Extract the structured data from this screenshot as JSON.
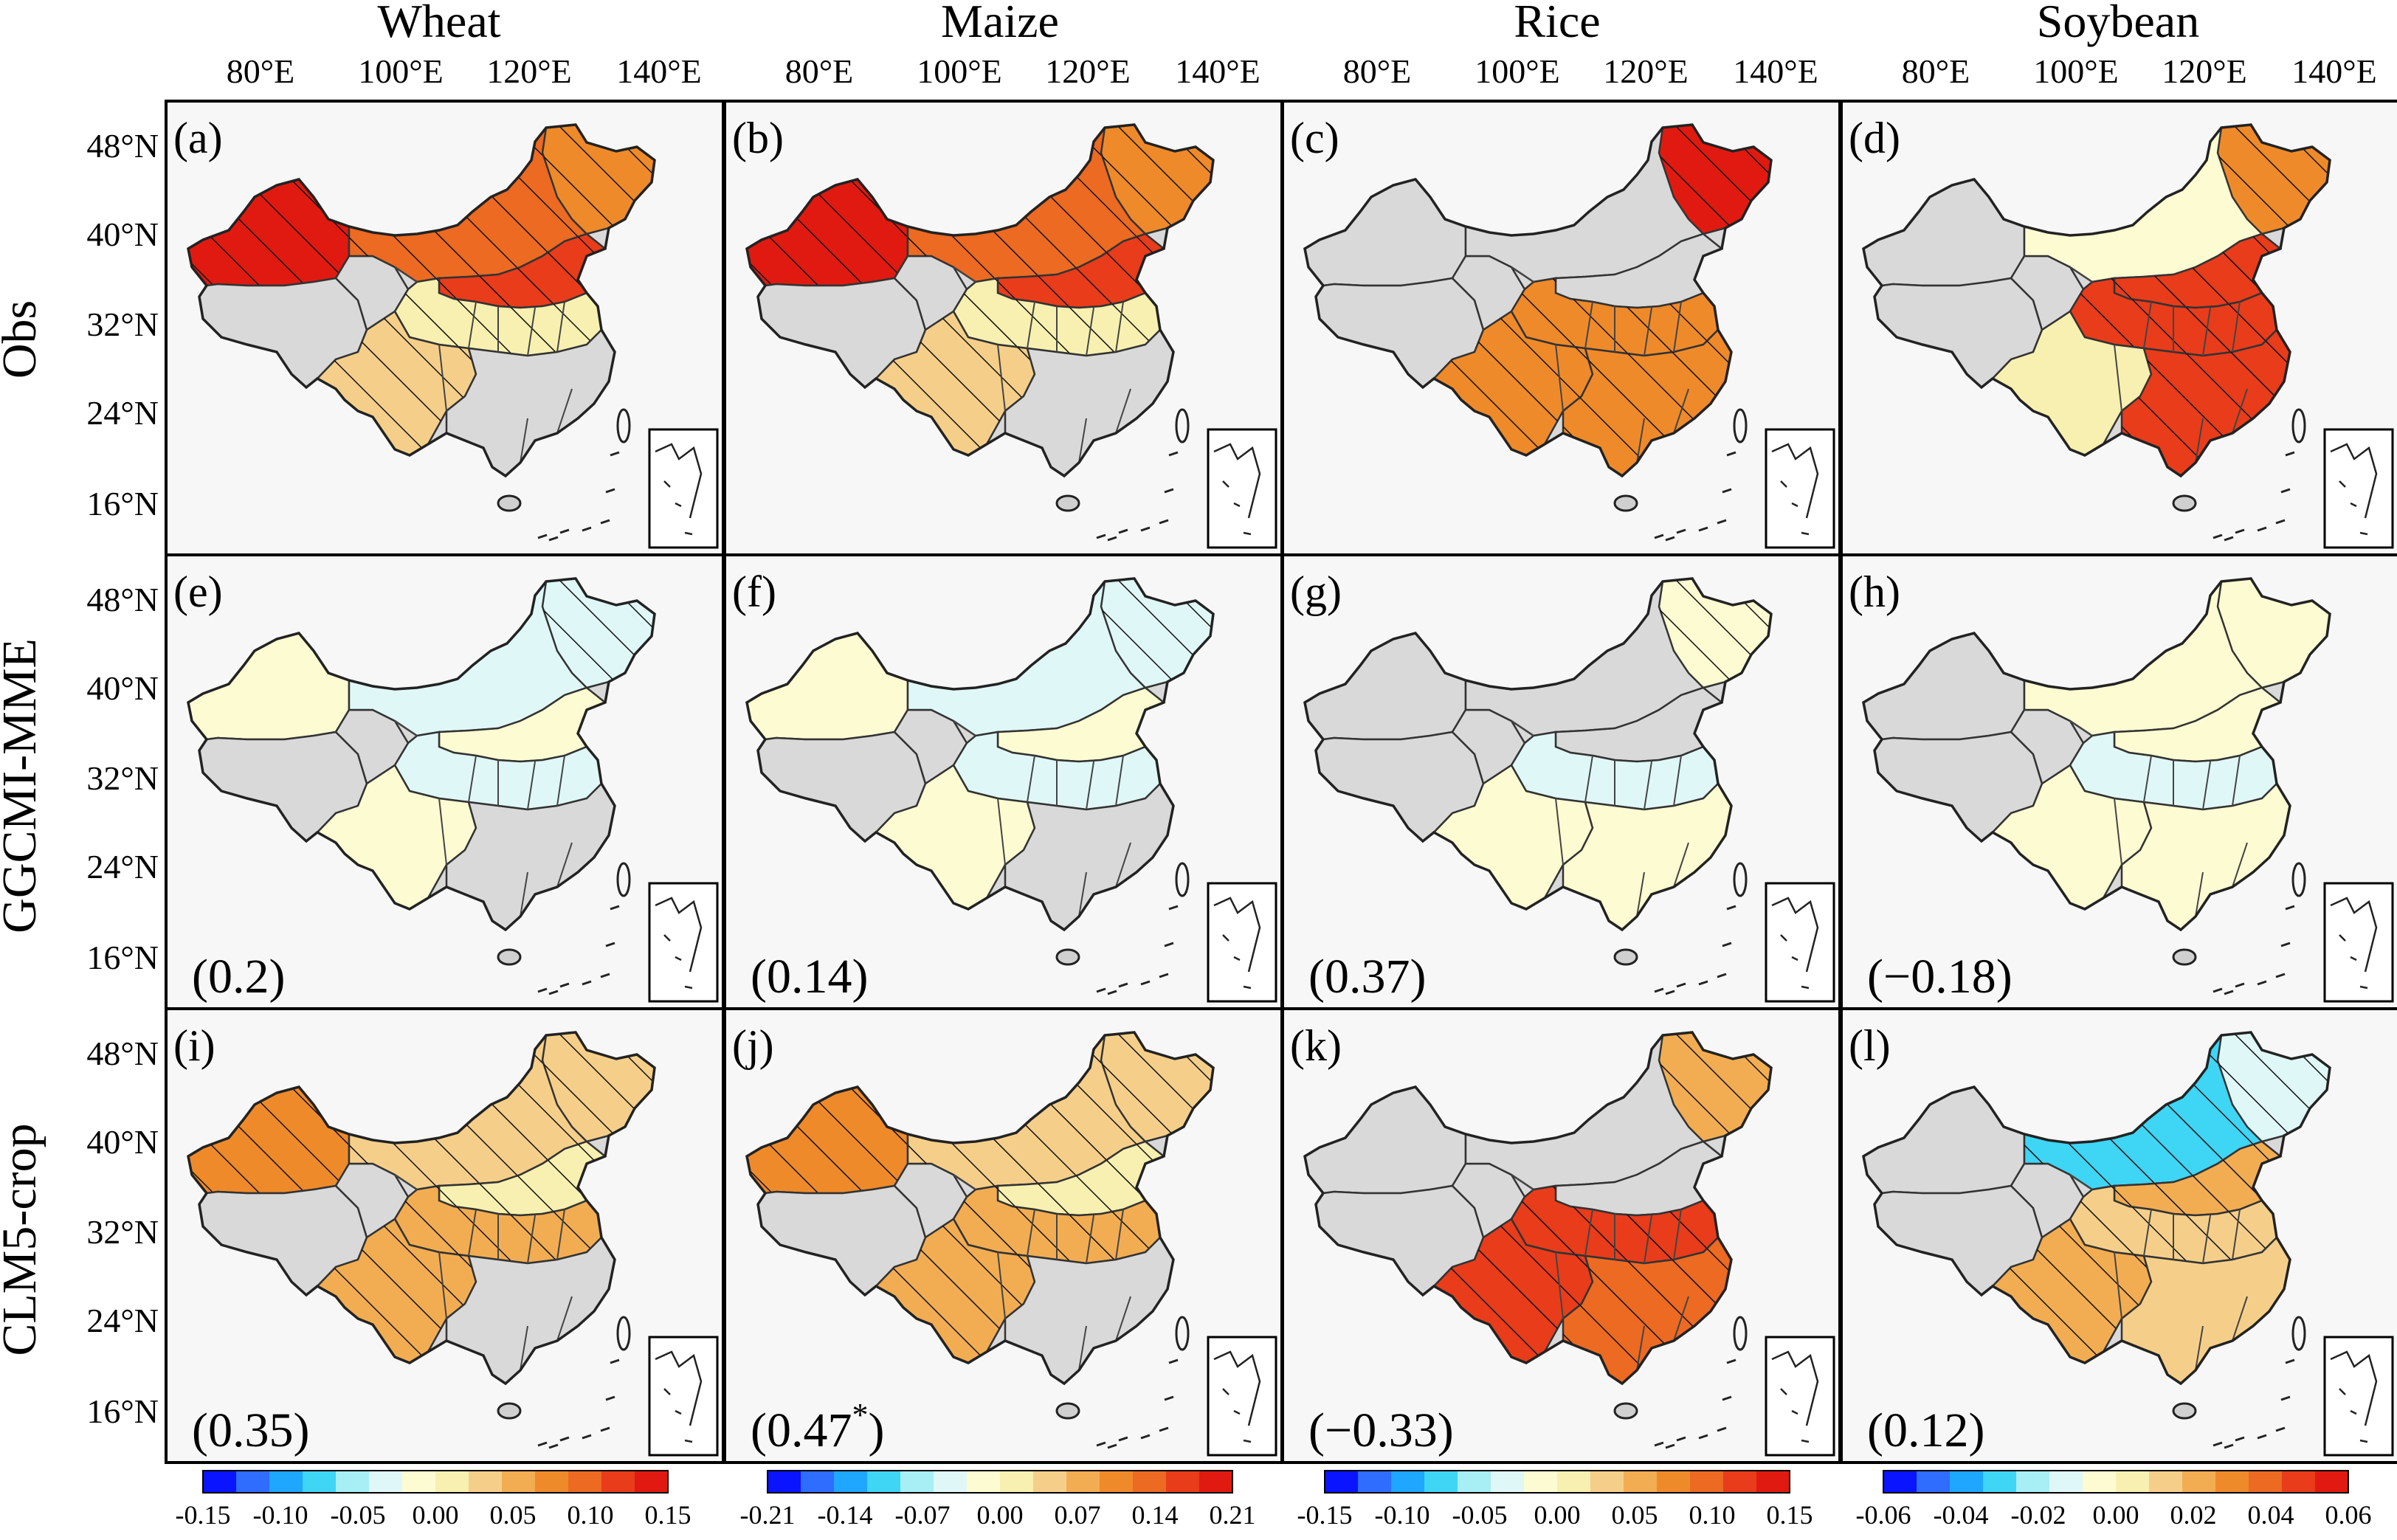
{
  "figure": {
    "columns": [
      "Wheat",
      "Maize",
      "Rice",
      "Soybean"
    ],
    "rows": [
      "Obs",
      "GGCMI-MME",
      "CLM5-crop"
    ],
    "lon_ticks": [
      "80°E",
      "100°E",
      "120°E",
      "140°E"
    ],
    "lat_ticks": [
      "48°N",
      "40°N",
      "32°N",
      "24°N",
      "16°N"
    ]
  },
  "panels": [
    {
      "id": "(a)",
      "row": 0,
      "col": 0,
      "corr": "",
      "star": false,
      "fill": "warm-high"
    },
    {
      "id": "(b)",
      "row": 0,
      "col": 1,
      "corr": "",
      "star": false,
      "fill": "warm-high"
    },
    {
      "id": "(c)",
      "row": 0,
      "col": 2,
      "corr": "",
      "star": false,
      "fill": "rice-obs"
    },
    {
      "id": "(d)",
      "row": 0,
      "col": 3,
      "corr": "",
      "star": false,
      "fill": "soy-obs"
    },
    {
      "id": "(e)",
      "row": 1,
      "col": 0,
      "corr": "(0.2)",
      "star": false,
      "fill": "mme"
    },
    {
      "id": "(f)",
      "row": 1,
      "col": 1,
      "corr": "(0.14)",
      "star": false,
      "fill": "mme"
    },
    {
      "id": "(g)",
      "row": 1,
      "col": 2,
      "corr": "(0.37)",
      "star": false,
      "fill": "rice-mme"
    },
    {
      "id": "(h)",
      "row": 1,
      "col": 3,
      "corr": "(−0.18)",
      "star": false,
      "fill": "soy-mme"
    },
    {
      "id": "(i)",
      "row": 2,
      "col": 0,
      "corr": "(0.35)",
      "star": false,
      "fill": "clm"
    },
    {
      "id": "(j)",
      "row": 2,
      "col": 1,
      "corr": "(0.47",
      "star": true,
      "fill": "clm"
    },
    {
      "id": "(k)",
      "row": 2,
      "col": 2,
      "corr": "(−0.33)",
      "star": false,
      "fill": "rice-clm"
    },
    {
      "id": "(l)",
      "row": 2,
      "col": 3,
      "corr": "(0.12)",
      "star": false,
      "fill": "soy-clm"
    }
  ],
  "colorbars": [
    {
      "ticks": [
        "-0.15",
        "-0.10",
        "-0.05",
        "0.00",
        "0.05",
        "0.10",
        "0.15"
      ]
    },
    {
      "ticks": [
        "-0.21",
        "-0.14",
        "-0.07",
        "0.00",
        "0.07",
        "0.14",
        "0.21"
      ]
    },
    {
      "ticks": [
        "-0.15",
        "-0.10",
        "-0.05",
        "0.00",
        "0.05",
        "0.10",
        "0.15"
      ]
    },
    {
      "ticks": [
        "-0.06",
        "-0.04",
        "-0.02",
        "0.00",
        "0.02",
        "0.04",
        "0.06"
      ]
    }
  ],
  "colors": {
    "scale": [
      "#0a14ff",
      "#2e6dff",
      "#1fa6ff",
      "#3fd5f5",
      "#a8eef5",
      "#e0f7f7",
      "#fdfbd2",
      "#f7f0b0",
      "#f5cf8a",
      "#f2ad52",
      "#ef8a2a",
      "#ec6a22",
      "#e83c1b",
      "#e01a10"
    ],
    "no_data": "#d9d9d9",
    "panel_bg": "#f7f7f7"
  }
}
